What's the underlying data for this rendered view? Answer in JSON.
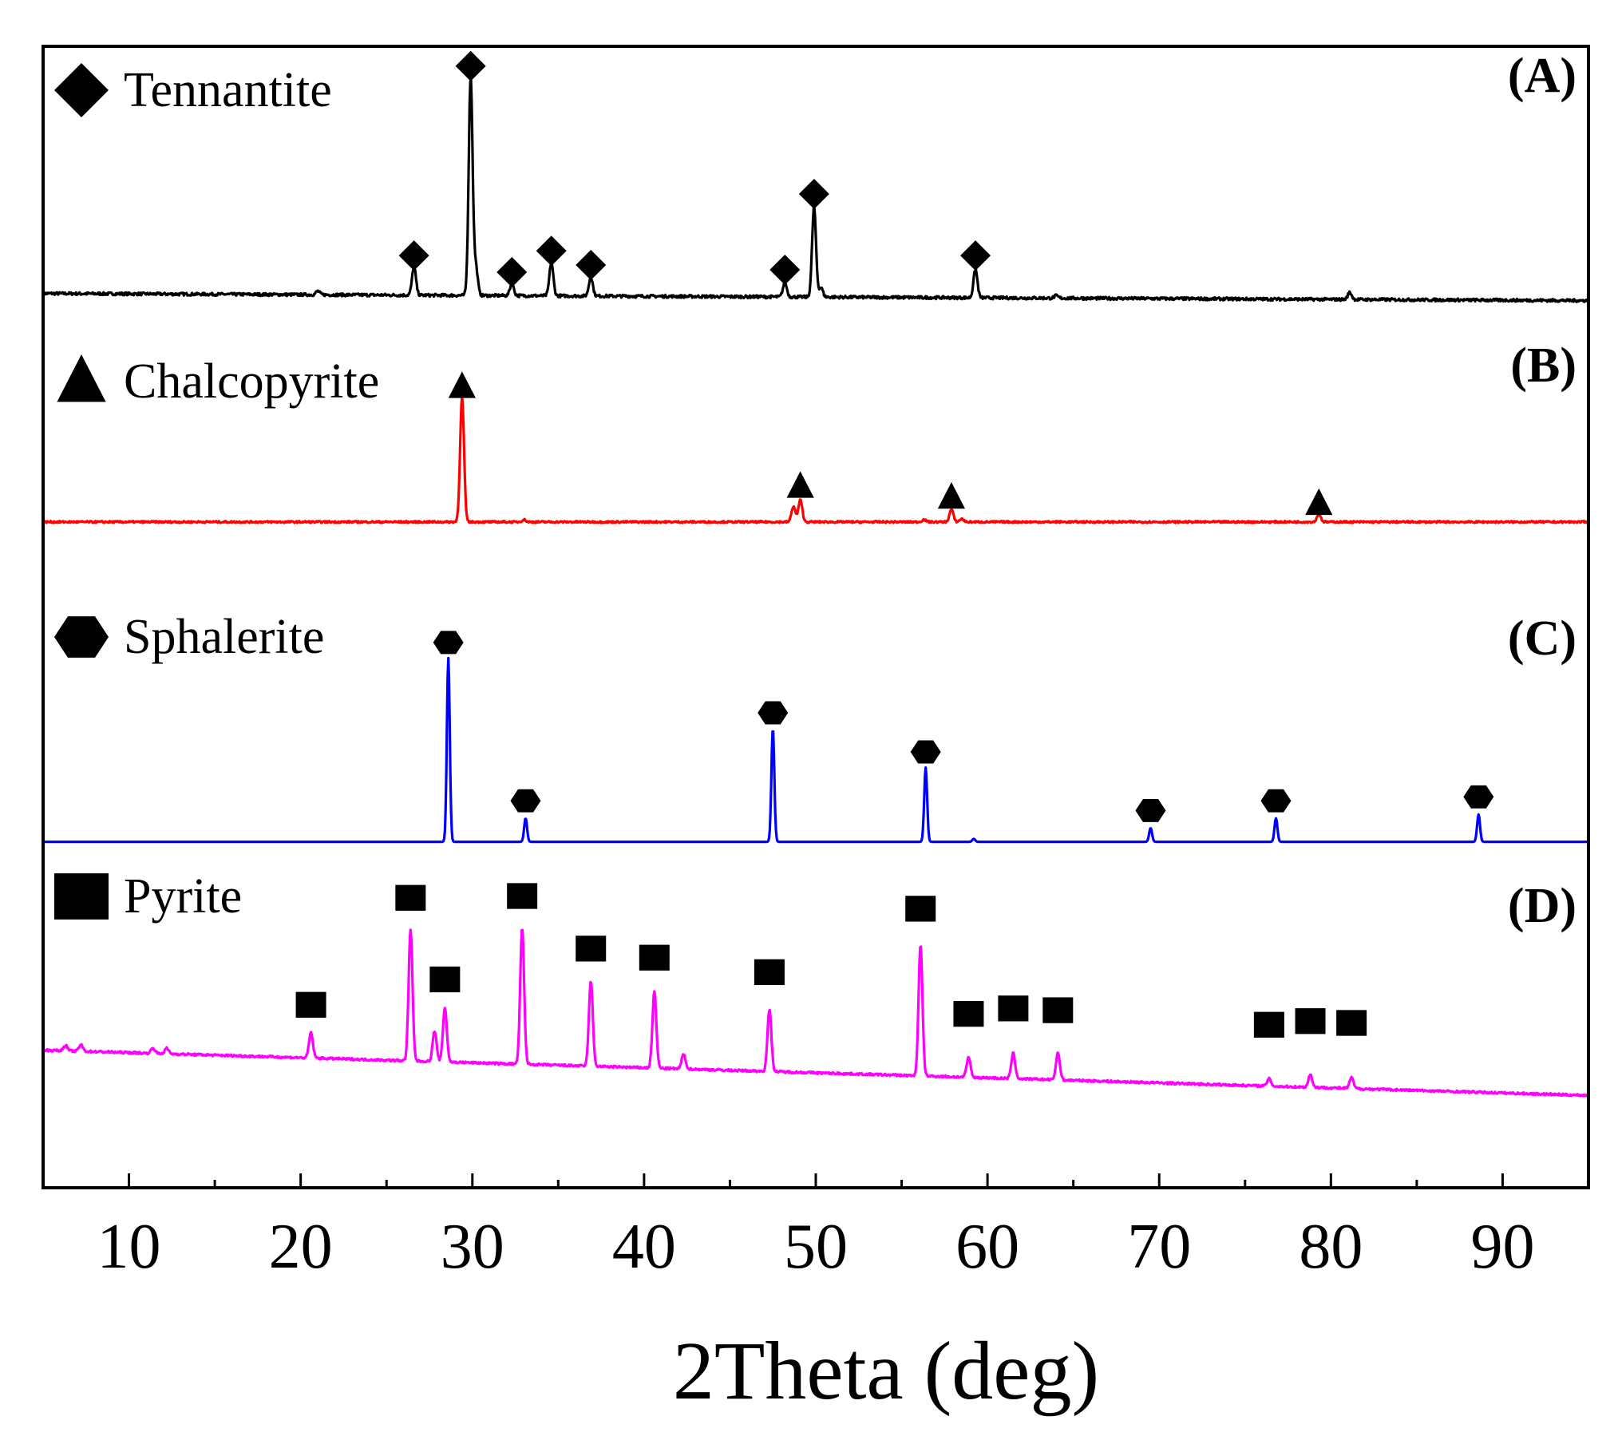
{
  "chart_data": {
    "type": "line",
    "title": "",
    "xlabel": "2Theta (deg)",
    "ylabel": "",
    "xlim": [
      5,
      95
    ],
    "xticks": [
      10,
      20,
      30,
      40,
      50,
      60,
      70,
      80,
      90
    ],
    "xticks_minor": [
      5,
      15,
      25,
      35,
      45,
      55,
      65,
      75,
      85,
      95
    ],
    "grid": false,
    "series": [
      {
        "name": "Tennantite",
        "panel": "(A)",
        "color": "#000000",
        "marker": "diamond",
        "baseline": 0.03,
        "peaks": [
          [
            26.6,
            0.12
          ],
          [
            29.9,
            0.92
          ],
          [
            30.2,
            0.12
          ],
          [
            32.3,
            0.05
          ],
          [
            34.6,
            0.14
          ],
          [
            36.9,
            0.08
          ],
          [
            48.2,
            0.06
          ],
          [
            49.9,
            0.38
          ],
          [
            50.3,
            0.04
          ],
          [
            59.3,
            0.12
          ],
          [
            81.1,
            0.03
          ],
          [
            21.0,
            0.015
          ],
          [
            64.0,
            0.01
          ]
        ],
        "markers_x": [
          26.6,
          29.9,
          32.3,
          34.6,
          36.9,
          48.2,
          49.9,
          59.3
        ],
        "markers_y": [
          0.19,
          0.99,
          0.12,
          0.21,
          0.15,
          0.13,
          0.45,
          0.19
        ]
      },
      {
        "name": "Chalcopyrite",
        "panel": "(B)",
        "color": "#ff0000",
        "marker": "triangle",
        "baseline": 0.03,
        "peaks": [
          [
            29.4,
            0.8
          ],
          [
            48.7,
            0.1
          ],
          [
            49.1,
            0.14
          ],
          [
            57.9,
            0.08
          ],
          [
            58.5,
            0.02
          ],
          [
            79.3,
            0.05
          ],
          [
            33.0,
            0.015
          ],
          [
            56.3,
            0.015
          ]
        ],
        "markers_x": [
          29.4,
          49.1,
          57.9,
          79.3
        ],
        "markers_y": [
          0.88,
          0.24,
          0.17,
          0.13
        ]
      },
      {
        "name": "Sphalerite",
        "panel": "(C)",
        "color": "#0000ff",
        "marker": "hexagon",
        "baseline": 0.0,
        "peaks": [
          [
            28.6,
            0.94
          ],
          [
            33.1,
            0.12
          ],
          [
            47.5,
            0.58
          ],
          [
            56.4,
            0.38
          ],
          [
            59.2,
            0.015
          ],
          [
            69.5,
            0.07
          ],
          [
            76.8,
            0.12
          ],
          [
            88.6,
            0.14
          ]
        ],
        "markers_x": [
          28.6,
          33.1,
          47.5,
          56.4,
          69.5,
          76.8,
          88.6
        ],
        "markers_y": [
          1.02,
          0.21,
          0.66,
          0.46,
          0.16,
          0.21,
          0.23
        ]
      },
      {
        "name": "Pyrite",
        "panel": "(D)",
        "color": "#ff00ff",
        "marker": "square",
        "baseline": 0.25,
        "peaks": [
          [
            20.6,
            0.14
          ],
          [
            26.4,
            0.72
          ],
          [
            27.8,
            0.17
          ],
          [
            28.4,
            0.3
          ],
          [
            32.9,
            0.75
          ],
          [
            36.9,
            0.47
          ],
          [
            40.6,
            0.42
          ],
          [
            42.3,
            0.08
          ],
          [
            47.3,
            0.34
          ],
          [
            56.1,
            0.72
          ],
          [
            58.9,
            0.11
          ],
          [
            61.5,
            0.14
          ],
          [
            64.1,
            0.15
          ],
          [
            76.4,
            0.04
          ],
          [
            78.8,
            0.07
          ],
          [
            81.2,
            0.06
          ],
          [
            6.3,
            0.03
          ],
          [
            7.2,
            0.035
          ],
          [
            11.4,
            0.03
          ],
          [
            12.2,
            0.03
          ]
        ],
        "markers_x": [
          20.6,
          26.4,
          28.4,
          32.9,
          36.9,
          40.6,
          47.3,
          56.1,
          58.9,
          61.5,
          64.1,
          76.4,
          78.8,
          81.2
        ],
        "markers_y": [
          0.5,
          1.09,
          0.64,
          1.1,
          0.81,
          0.76,
          0.68,
          1.03,
          0.45,
          0.48,
          0.47,
          0.39,
          0.41,
          0.4
        ]
      }
    ]
  }
}
